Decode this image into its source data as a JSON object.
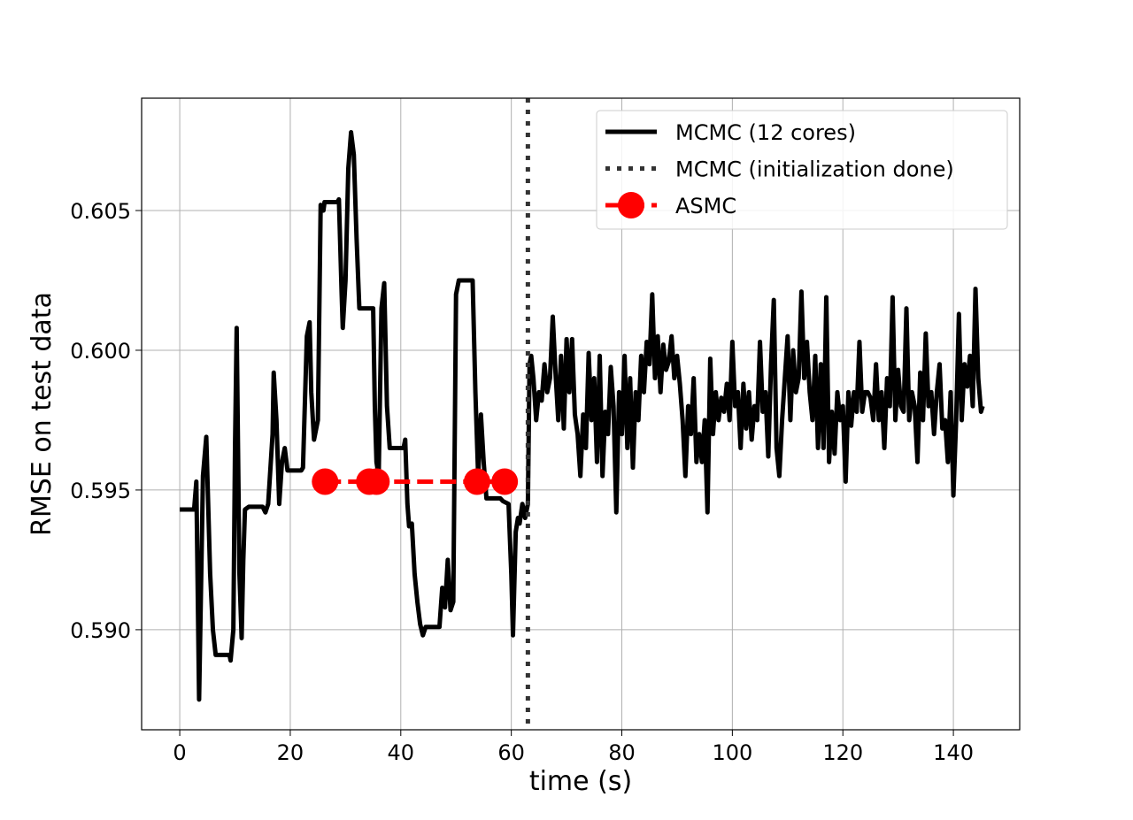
{
  "chart_data": {
    "type": "line",
    "xlabel": "time (s)",
    "ylabel": "RMSE on test data",
    "xlim": [
      -6.9,
      152.0
    ],
    "ylim": [
      0.58642,
      0.60902
    ],
    "xticks": [
      0,
      20,
      40,
      60,
      80,
      100,
      120,
      140
    ],
    "yticks": [
      {
        "value": 0.59,
        "label": "0.590"
      },
      0.595,
      {
        "value": 0.6,
        "label": "0.600"
      },
      0.605
    ],
    "grid": true,
    "legend": "upper right",
    "series": [
      {
        "name": "MCMC (12 cores)",
        "color": "#000000",
        "x": [
          0,
          2.6,
          3,
          3.5,
          4.2,
          4.8,
          5.5,
          6,
          6.5,
          9,
          9.2,
          9.7,
          10,
          10.3,
          10.8,
          11.2,
          11.5,
          11.8,
          12.5,
          15,
          15.5,
          16,
          16.8,
          17,
          17.5,
          18,
          18.5,
          19,
          19.5,
          22,
          22.3,
          23,
          23.5,
          23.8,
          24.3,
          25,
          25.5,
          26,
          26.2,
          28.5,
          28.8,
          29.3,
          29.5,
          30,
          30.5,
          31,
          31.5,
          32,
          32.5,
          35,
          35.3,
          35.6,
          36,
          36.5,
          37,
          37.5,
          38,
          40.5,
          40.8,
          41.2,
          41.5,
          42,
          42.5,
          43,
          43.5,
          44,
          44.5,
          47,
          47.5,
          48,
          48.5,
          49,
          49.5,
          50,
          50.5,
          51,
          53,
          53.5,
          54,
          54.5,
          55,
          55.5,
          58,
          58.5,
          59.5,
          60,
          60.3,
          60.8,
          61.2,
          61.5,
          62,
          62.5,
          63,
          63.3,
          63.6,
          64,
          64.5,
          65,
          65.5,
          66,
          66.5,
          67,
          67.5,
          68,
          68.5,
          69,
          69.5,
          70,
          70.5,
          71,
          71.5,
          72,
          72.5,
          73,
          73.5,
          74,
          74.5,
          75,
          75.5,
          76,
          76.5,
          77,
          77.5,
          78,
          78.5,
          79,
          79.5,
          80,
          80.5,
          81,
          81.5,
          82,
          82.5,
          83,
          83.5,
          84,
          84.5,
          85,
          85.5,
          86,
          86.5,
          87,
          87.5,
          88,
          88.5,
          89,
          89.5,
          90,
          90.5,
          91,
          91.5,
          92,
          92.5,
          93,
          93.5,
          94,
          94.5,
          95,
          95.5,
          96,
          96.5,
          97,
          97.5,
          98,
          98.5,
          99,
          99.5,
          100,
          100.5,
          101,
          101.5,
          102,
          102.5,
          103,
          103.5,
          104,
          104.5,
          105,
          105.5,
          106,
          106.5,
          107,
          107.5,
          108,
          108.5,
          109,
          109.5,
          110,
          110.5,
          111,
          111.5,
          112,
          112.5,
          113,
          113.5,
          114,
          114.5,
          115,
          115.5,
          116,
          116.5,
          117,
          117.5,
          118,
          118.5,
          119,
          119.5,
          120,
          120.5,
          121,
          121.5,
          122,
          122.5,
          123,
          123.5,
          124,
          124.5,
          125,
          125.5,
          126,
          126.5,
          127,
          127.5,
          128,
          128.5,
          129,
          129.5,
          130,
          130.5,
          131,
          131.5,
          132,
          132.5,
          133,
          133.5,
          134,
          134.5,
          135,
          135.5,
          136,
          136.5,
          137,
          137.5,
          138,
          138.5,
          139,
          139.5,
          140,
          140.5,
          141,
          141.5,
          142,
          142.5,
          143,
          143.5,
          144,
          144.5,
          145,
          145.3
        ],
        "values": [
          0.5943,
          0.5943,
          0.5953,
          0.5875,
          0.5955,
          0.5969,
          0.592,
          0.59,
          0.5891,
          0.5891,
          0.5889,
          0.59,
          0.5965,
          0.6008,
          0.592,
          0.5897,
          0.5925,
          0.5943,
          0.5944,
          0.5944,
          0.5942,
          0.5945,
          0.597,
          0.5992,
          0.5975,
          0.5945,
          0.596,
          0.5965,
          0.5957,
          0.5957,
          0.5958,
          0.6005,
          0.601,
          0.5985,
          0.5968,
          0.5975,
          0.6052,
          0.605,
          0.6053,
          0.6053,
          0.6054,
          0.602,
          0.6008,
          0.6025,
          0.6065,
          0.6078,
          0.607,
          0.604,
          0.6015,
          0.6015,
          0.598,
          0.596,
          0.5955,
          0.6015,
          0.6024,
          0.598,
          0.5965,
          0.5965,
          0.5968,
          0.5945,
          0.5937,
          0.5938,
          0.592,
          0.591,
          0.5902,
          0.5898,
          0.5901,
          0.5901,
          0.5915,
          0.5908,
          0.5925,
          0.5907,
          0.591,
          0.602,
          0.6025,
          0.6025,
          0.6025,
          0.5985,
          0.5955,
          0.5977,
          0.596,
          0.5947,
          0.5947,
          0.5946,
          0.5945,
          0.592,
          0.5898,
          0.5935,
          0.594,
          0.5938,
          0.5945,
          0.594,
          0.5945,
          0.5995,
          0.5998,
          0.599,
          0.5975,
          0.5985,
          0.5982,
          0.5995,
          0.5985,
          0.599,
          0.6012,
          0.5992,
          0.5975,
          0.5998,
          0.5972,
          0.6004,
          0.5985,
          0.6004,
          0.5977,
          0.597,
          0.5955,
          0.5977,
          0.5965,
          0.5999,
          0.5975,
          0.599,
          0.596,
          0.5998,
          0.5955,
          0.5978,
          0.597,
          0.5994,
          0.598,
          0.5942,
          0.5985,
          0.597,
          0.5998,
          0.5965,
          0.599,
          0.5958,
          0.5985,
          0.5975,
          0.5998,
          0.5985,
          0.6003,
          0.5995,
          0.602,
          0.599,
          0.6005,
          0.5985,
          0.6002,
          0.5993,
          0.5996,
          0.6005,
          0.599,
          0.5998,
          0.5988,
          0.5975,
          0.5955,
          0.598,
          0.597,
          0.599,
          0.596,
          0.597,
          0.596,
          0.5975,
          0.5942,
          0.5997,
          0.597,
          0.5985,
          0.5975,
          0.5983,
          0.5978,
          0.5988,
          0.5975,
          0.6003,
          0.598,
          0.5985,
          0.5965,
          0.5988,
          0.5972,
          0.5985,
          0.5968,
          0.598,
          0.5975,
          0.6003,
          0.5978,
          0.5985,
          0.5962,
          0.5995,
          0.6018,
          0.5965,
          0.5955,
          0.5975,
          0.599,
          0.6005,
          0.5975,
          0.6,
          0.5985,
          0.599,
          0.6021,
          0.599,
          0.6003,
          0.5985,
          0.5975,
          0.5998,
          0.5965,
          0.5995,
          0.5965,
          0.6019,
          0.596,
          0.5978,
          0.5963,
          0.5985,
          0.5975,
          0.598,
          0.5953,
          0.5985,
          0.5973,
          0.5985,
          0.5978,
          0.6003,
          0.5978,
          0.5985,
          0.5985,
          0.5983,
          0.5975,
          0.5995,
          0.5975,
          0.5985,
          0.5965,
          0.599,
          0.598,
          0.6019,
          0.5975,
          0.5993,
          0.598,
          0.5978,
          0.6015,
          0.5975,
          0.5985,
          0.598,
          0.596,
          0.5992,
          0.5975,
          0.6006,
          0.598,
          0.5985,
          0.597,
          0.5985,
          0.5995,
          0.5972,
          0.5975,
          0.596,
          0.5985,
          0.5948,
          0.5975,
          0.6013,
          0.5975,
          0.5995,
          0.5987,
          0.5998,
          0.598,
          0.6022,
          0.599,
          0.5978,
          0.598
        ]
      },
      {
        "name": "ASMC",
        "color": "#ff0000",
        "dashed": true,
        "marker": "circle",
        "x": [
          26.3,
          34.3,
          35.6,
          53.8,
          58.8
        ],
        "values": [
          0.5953,
          0.5953,
          0.5953,
          0.5953,
          0.5953
        ]
      }
    ],
    "vlines": [
      {
        "name": "MCMC (initialization done)",
        "x": 63,
        "color": "#333333"
      }
    ]
  }
}
